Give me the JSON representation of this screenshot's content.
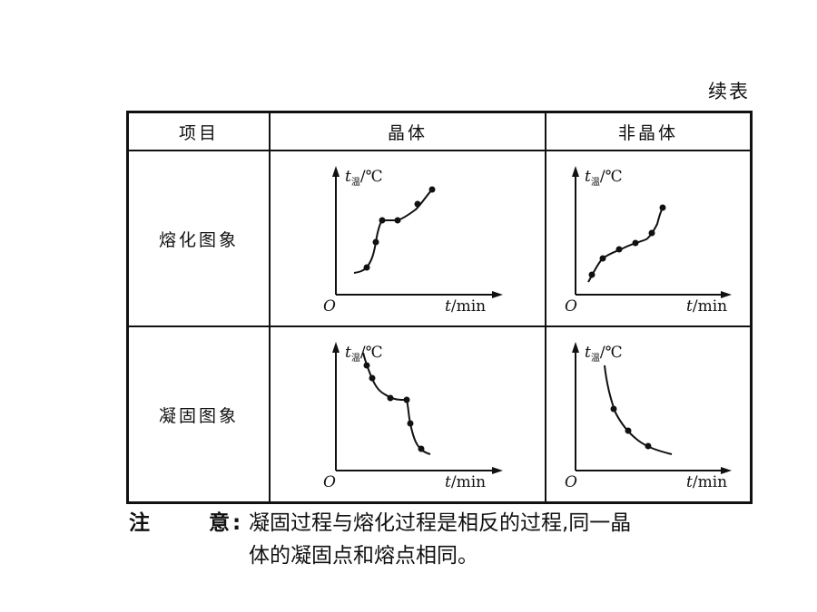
{
  "caption": "续表",
  "table": {
    "headers": [
      "项目",
      "晶体",
      "非晶体"
    ],
    "rows": [
      {
        "label": "熔化图象"
      },
      {
        "label": "凝固图象"
      }
    ]
  },
  "graph_labels": {
    "y_var": "t",
    "y_sub": "温",
    "y_unit": "/℃",
    "origin": "O",
    "x_var": "t",
    "x_unit": "/min"
  },
  "note": {
    "label_a": "注",
    "label_b": "意",
    "colon": ":",
    "line1": "凝固过程与熔化过程是相反的过程,同一晶",
    "line2": "体的凝固点和熔点相同。"
  }
}
